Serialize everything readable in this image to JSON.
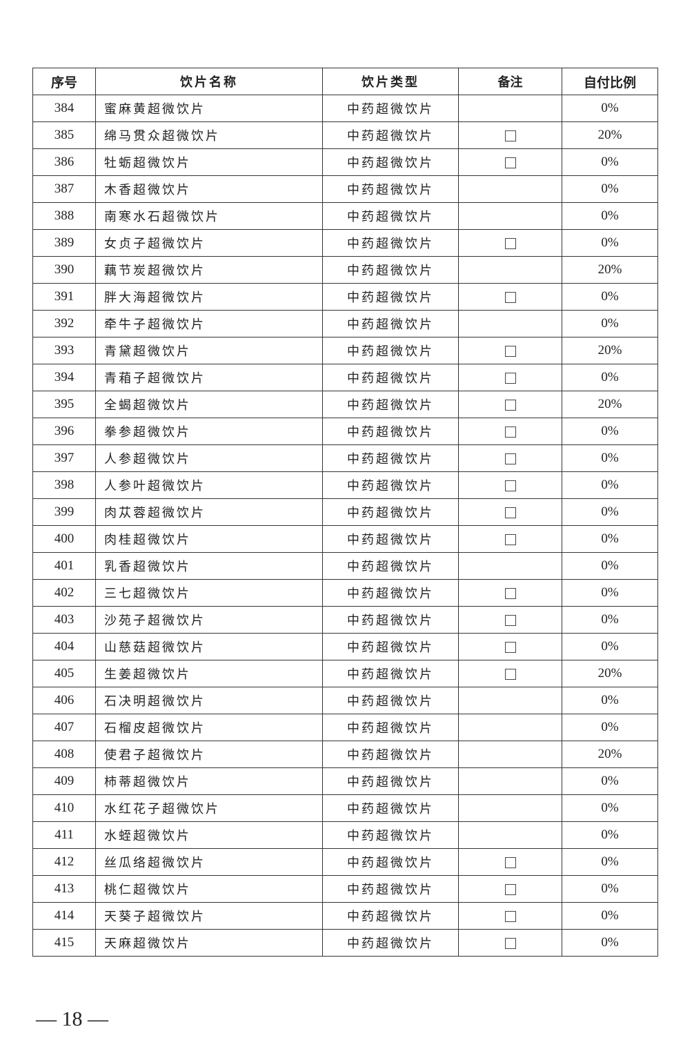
{
  "headers": [
    "序号",
    "饮片名称",
    "饮片类型",
    "备注",
    "自付比例"
  ],
  "rows": [
    {
      "no": "384",
      "name": "蜜麻黄超微饮片",
      "type": "中药超微饮片",
      "remark_box": false,
      "ratio": "0%"
    },
    {
      "no": "385",
      "name": "绵马贯众超微饮片",
      "type": "中药超微饮片",
      "remark_box": true,
      "ratio": "20%"
    },
    {
      "no": "386",
      "name": "牡蛎超微饮片",
      "type": "中药超微饮片",
      "remark_box": true,
      "ratio": "0%"
    },
    {
      "no": "387",
      "name": "木香超微饮片",
      "type": "中药超微饮片",
      "remark_box": false,
      "ratio": "0%"
    },
    {
      "no": "388",
      "name": "南寒水石超微饮片",
      "type": "中药超微饮片",
      "remark_box": false,
      "ratio": "0%"
    },
    {
      "no": "389",
      "name": "女贞子超微饮片",
      "type": "中药超微饮片",
      "remark_box": true,
      "ratio": "0%"
    },
    {
      "no": "390",
      "name": "藕节炭超微饮片",
      "type": "中药超微饮片",
      "remark_box": false,
      "ratio": "20%"
    },
    {
      "no": "391",
      "name": "胖大海超微饮片",
      "type": "中药超微饮片",
      "remark_box": true,
      "ratio": "0%"
    },
    {
      "no": "392",
      "name": "牵牛子超微饮片",
      "type": "中药超微饮片",
      "remark_box": false,
      "ratio": "0%"
    },
    {
      "no": "393",
      "name": "青黛超微饮片",
      "type": "中药超微饮片",
      "remark_box": true,
      "ratio": "20%"
    },
    {
      "no": "394",
      "name": "青葙子超微饮片",
      "type": "中药超微饮片",
      "remark_box": true,
      "ratio": "0%"
    },
    {
      "no": "395",
      "name": "全蝎超微饮片",
      "type": "中药超微饮片",
      "remark_box": true,
      "ratio": "20%"
    },
    {
      "no": "396",
      "name": "拳参超微饮片",
      "type": "中药超微饮片",
      "remark_box": true,
      "ratio": "0%"
    },
    {
      "no": "397",
      "name": "人参超微饮片",
      "type": "中药超微饮片",
      "remark_box": true,
      "ratio": "0%"
    },
    {
      "no": "398",
      "name": "人参叶超微饮片",
      "type": "中药超微饮片",
      "remark_box": true,
      "ratio": "0%"
    },
    {
      "no": "399",
      "name": "肉苁蓉超微饮片",
      "type": "中药超微饮片",
      "remark_box": true,
      "ratio": "0%"
    },
    {
      "no": "400",
      "name": "肉桂超微饮片",
      "type": "中药超微饮片",
      "remark_box": true,
      "ratio": "0%"
    },
    {
      "no": "401",
      "name": "乳香超微饮片",
      "type": "中药超微饮片",
      "remark_box": false,
      "ratio": "0%"
    },
    {
      "no": "402",
      "name": "三七超微饮片",
      "type": "中药超微饮片",
      "remark_box": true,
      "ratio": "0%"
    },
    {
      "no": "403",
      "name": "沙苑子超微饮片",
      "type": "中药超微饮片",
      "remark_box": true,
      "ratio": "0%"
    },
    {
      "no": "404",
      "name": "山慈菇超微饮片",
      "type": "中药超微饮片",
      "remark_box": true,
      "ratio": "0%"
    },
    {
      "no": "405",
      "name": "生姜超微饮片",
      "type": "中药超微饮片",
      "remark_box": true,
      "ratio": "20%"
    },
    {
      "no": "406",
      "name": "石决明超微饮片",
      "type": "中药超微饮片",
      "remark_box": false,
      "ratio": "0%"
    },
    {
      "no": "407",
      "name": "石榴皮超微饮片",
      "type": "中药超微饮片",
      "remark_box": false,
      "ratio": "0%"
    },
    {
      "no": "408",
      "name": "使君子超微饮片",
      "type": "中药超微饮片",
      "remark_box": false,
      "ratio": "20%"
    },
    {
      "no": "409",
      "name": "柿蒂超微饮片",
      "type": "中药超微饮片",
      "remark_box": false,
      "ratio": "0%"
    },
    {
      "no": "410",
      "name": "水红花子超微饮片",
      "type": "中药超微饮片",
      "remark_box": false,
      "ratio": "0%"
    },
    {
      "no": "411",
      "name": "水蛭超微饮片",
      "type": "中药超微饮片",
      "remark_box": false,
      "ratio": "0%"
    },
    {
      "no": "412",
      "name": "丝瓜络超微饮片",
      "type": "中药超微饮片",
      "remark_box": true,
      "ratio": "0%"
    },
    {
      "no": "413",
      "name": "桃仁超微饮片",
      "type": "中药超微饮片",
      "remark_box": true,
      "ratio": "0%"
    },
    {
      "no": "414",
      "name": "天葵子超微饮片",
      "type": "中药超微饮片",
      "remark_box": true,
      "ratio": "0%"
    },
    {
      "no": "415",
      "name": "天麻超微饮片",
      "type": "中药超微饮片",
      "remark_box": true,
      "ratio": "0%"
    }
  ],
  "footer": {
    "page": "— 18 —"
  }
}
